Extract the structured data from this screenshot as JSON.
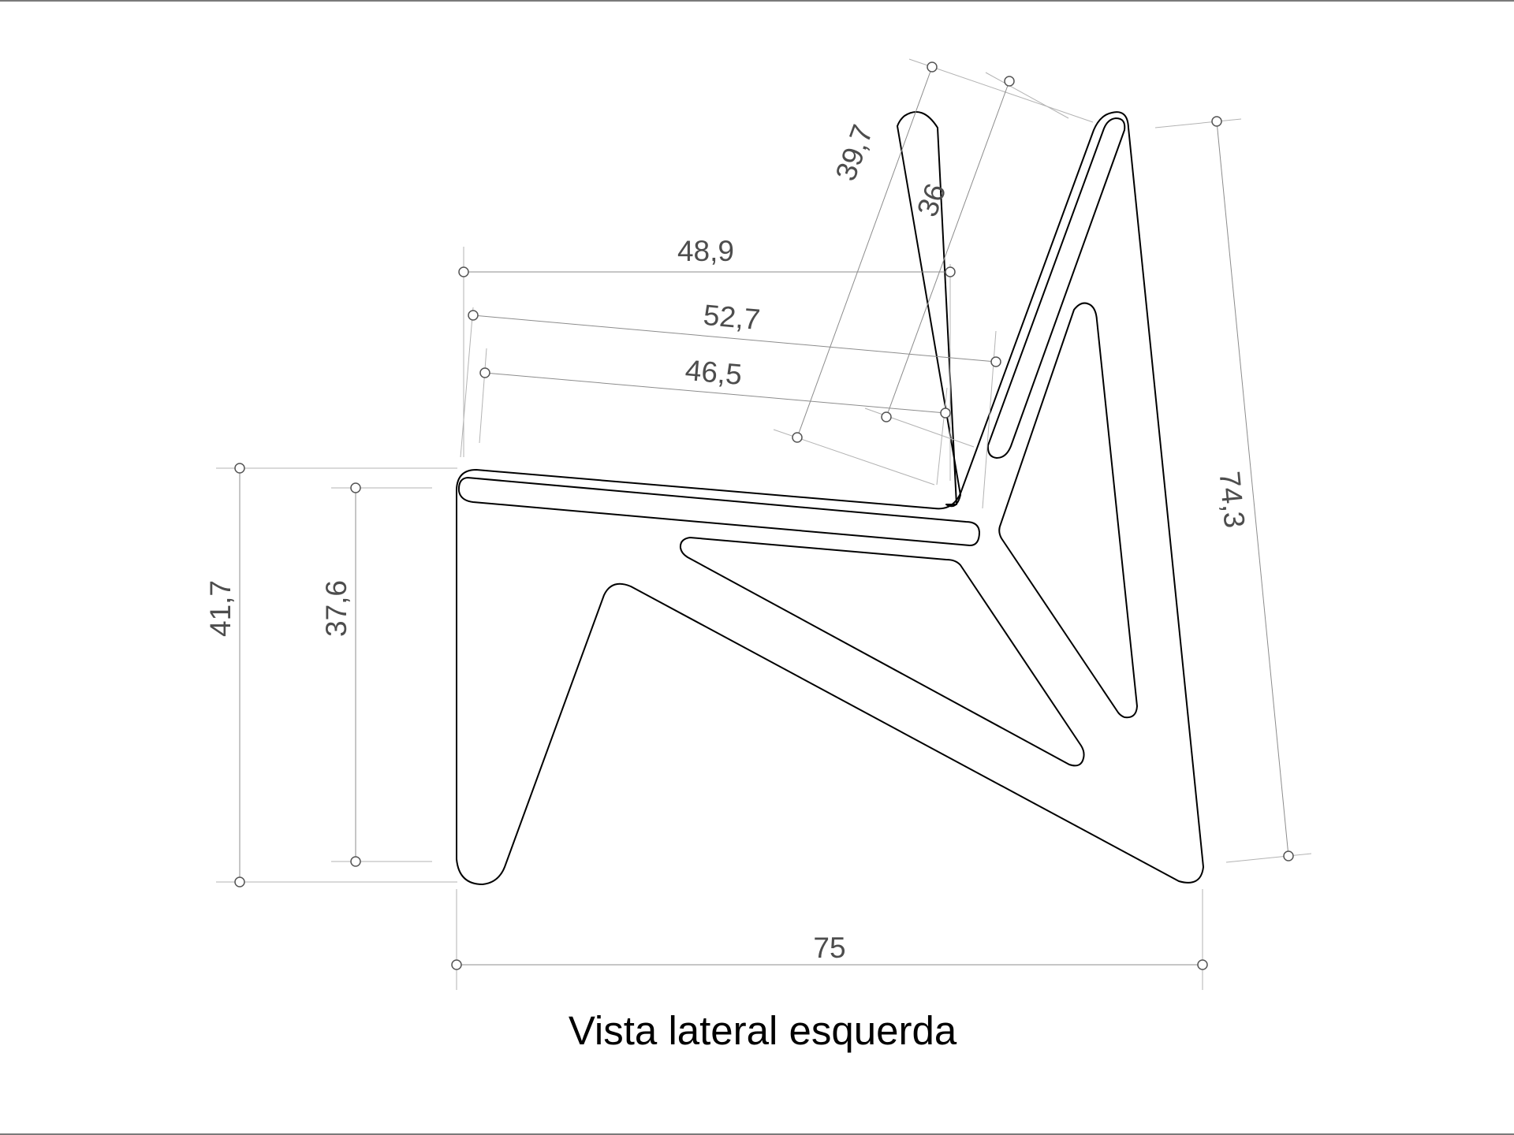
{
  "caption": "Vista lateral esquerda",
  "dimensions": {
    "d_48_9": "48,9",
    "d_52_7": "52,7",
    "d_46_5": "46,5",
    "d_39_7": "39,7",
    "d_36": "36",
    "d_74_3": "74,3",
    "d_41_7": "41,7",
    "d_37_6": "37,6",
    "d_75": "75"
  },
  "colors": {
    "outline": "#000000",
    "dimension_line": "#8c8c8c",
    "dimension_text": "#4d4d4d",
    "frame_border": "#7a7a7a"
  }
}
